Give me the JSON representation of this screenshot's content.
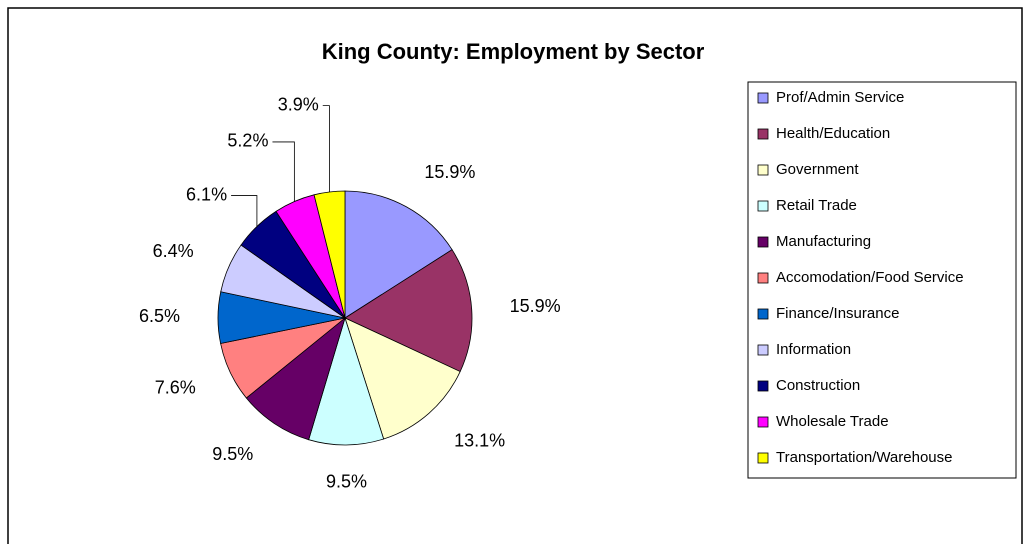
{
  "chart_data": {
    "type": "pie",
    "title": "King County: Employment by Sector",
    "categories": [
      "Prof/Admin Service",
      "Health/Education",
      "Government",
      "Retail Trade",
      "Manufacturing",
      "Accomodation/Food Service",
      "Finance/Insurance",
      "Information",
      "Construction",
      "Wholesale Trade",
      "Transportation/Warehouse"
    ],
    "values": [
      15.9,
      15.9,
      13.1,
      9.5,
      9.5,
      7.6,
      6.5,
      6.4,
      6.1,
      5.2,
      3.9
    ],
    "value_labels": [
      "15.9%",
      "15.9%",
      "13.1%",
      "9.5%",
      "9.5%",
      "7.6%",
      "6.5%",
      "6.4%",
      "6.1%",
      "5.2%",
      "3.9%"
    ],
    "colors": [
      "#9999ff",
      "#993366",
      "#ffffcc",
      "#ccffff",
      "#660066",
      "#ff8080",
      "#0066cc",
      "#ccccff",
      "#000080",
      "#ff00ff",
      "#ffff00"
    ],
    "legend": "right"
  }
}
